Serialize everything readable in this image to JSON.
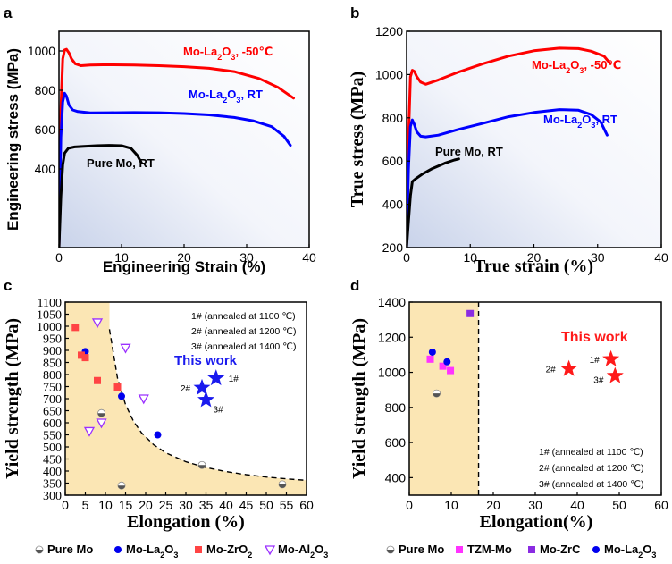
{
  "panels": [
    {
      "label": "a"
    },
    {
      "label": "b"
    },
    {
      "label": "c"
    },
    {
      "label": "d"
    }
  ],
  "chart_data": [
    {
      "id": "a",
      "type": "line",
      "xlabel": "Engineering Strain (%)",
      "ylabel": "Engineering stress (MPa)",
      "xlim": [
        0,
        40
      ],
      "ylim": [
        0,
        1100
      ],
      "xticks": [
        "0",
        "10",
        "20",
        "30",
        "40"
      ],
      "yticks": [
        "400",
        "600",
        "800",
        "1000"
      ],
      "series": [
        {
          "name": "Mo-La2O3, -50℃",
          "label_main": "Mo-La",
          "label_sub": "2",
          "label_tail": "O",
          "label_sub2": "3",
          "label_end": ", -50℃",
          "color": "#ff0000",
          "x": [
            0,
            0.3,
            0.6,
            0.9,
            1.2,
            1.6,
            2.0,
            2.6,
            3.5,
            5,
            8,
            12,
            16,
            20,
            24,
            28,
            32,
            35,
            37.5
          ],
          "y": [
            0,
            700,
            960,
            1005,
            1008,
            990,
            960,
            935,
            925,
            928,
            930,
            928,
            925,
            920,
            912,
            895,
            860,
            815,
            760
          ]
        },
        {
          "name": "Mo-La2O3, RT",
          "label_main": "Mo-La",
          "label_sub": "2",
          "label_tail": "O",
          "label_sub2": "3",
          "label_end": ", RT",
          "color": "#0000ff",
          "x": [
            0,
            0.3,
            0.6,
            0.9,
            1.2,
            1.6,
            2.2,
            3,
            5,
            8,
            12,
            16,
            20,
            24,
            28,
            31,
            34,
            36,
            37
          ],
          "y": [
            0,
            560,
            740,
            785,
            770,
            725,
            700,
            692,
            685,
            686,
            687,
            686,
            682,
            675,
            662,
            645,
            615,
            565,
            520
          ]
        },
        {
          "name": "Pure Mo, RT",
          "label_main": "Pure Mo, RT",
          "color": "#000000",
          "x": [
            0,
            0.3,
            0.6,
            0.9,
            1.5,
            2.5,
            4,
            6,
            8,
            10,
            11.5,
            12.5,
            13.2
          ],
          "y": [
            0,
            260,
            420,
            480,
            505,
            512,
            515,
            518,
            520,
            518,
            505,
            470,
            430
          ]
        }
      ]
    },
    {
      "id": "b",
      "type": "line",
      "xlabel": "True strain (%)",
      "ylabel": "True stress (MPa)",
      "xlim": [
        0,
        40
      ],
      "ylim": [
        200,
        1200
      ],
      "xticks": [
        "0",
        "10",
        "20",
        "30",
        "40"
      ],
      "yticks": [
        "200",
        "400",
        "600",
        "800",
        "1000",
        "1200"
      ],
      "series": [
        {
          "name": "Mo-La2O3, -50℃",
          "label_main": "Mo-La",
          "label_sub": "2",
          "label_tail": "O",
          "label_sub2": "3",
          "label_end": ", -50℃",
          "color": "#ff0000",
          "x": [
            0,
            0.3,
            0.6,
            0.9,
            1.2,
            1.6,
            2.2,
            3,
            5,
            8,
            12,
            16,
            20,
            24,
            27,
            29,
            31,
            32
          ],
          "y": [
            200,
            700,
            990,
            1020,
            1015,
            990,
            965,
            955,
            975,
            1010,
            1050,
            1085,
            1110,
            1122,
            1120,
            1108,
            1085,
            1050
          ]
        },
        {
          "name": "Mo-La2O3, RT",
          "label_main": "Mo-La",
          "label_sub": "2",
          "label_tail": "O",
          "label_sub2": "3",
          "label_end": ", RT",
          "color": "#0000ff",
          "x": [
            0,
            0.3,
            0.6,
            0.9,
            1.2,
            1.6,
            2.2,
            3,
            5,
            8,
            12,
            16,
            20,
            24,
            27,
            29,
            30.5,
            31.5
          ],
          "y": [
            200,
            560,
            760,
            790,
            770,
            735,
            715,
            712,
            720,
            745,
            775,
            805,
            825,
            838,
            835,
            815,
            780,
            720
          ]
        },
        {
          "name": "Pure Mo, RT",
          "label_main": "Pure Mo, RT",
          "color": "#000000",
          "x": [
            0,
            0.3,
            0.6,
            0.9,
            1.5,
            2.5,
            4,
            6,
            7.5,
            8.2
          ],
          "y": [
            200,
            320,
            440,
            505,
            520,
            540,
            565,
            590,
            605,
            610
          ]
        }
      ]
    },
    {
      "id": "c",
      "type": "scatter",
      "xlabel": "Elongation (%)",
      "ylabel": "Yield strength (MPa)",
      "xlim": [
        0,
        60
      ],
      "ylim": [
        300,
        1100
      ],
      "xticks": [
        "0",
        "5",
        "10",
        "15",
        "20",
        "25",
        "30",
        "35",
        "40",
        "45",
        "50",
        "55",
        "60"
      ],
      "yticks": [
        "300",
        "350",
        "400",
        "450",
        "500",
        "550",
        "600",
        "650",
        "700",
        "750",
        "800",
        "850",
        "900",
        "950",
        "1000",
        "1050",
        "1100"
      ],
      "boundary": {
        "type": "curve",
        "x": [
          11,
          13,
          15,
          17,
          19,
          22,
          25,
          30,
          35,
          40,
          45,
          50,
          55,
          60
        ]
      },
      "notes": [
        "1#  (annealed at 1100 ℃)",
        "2#  (annealed at 1200 ℃)",
        "3#  (annealed at 1400 ℃)"
      ],
      "this_work_label": "This work",
      "series": [
        {
          "name": "Pure Mo",
          "marker": "halfcircle",
          "color": "#777777",
          "points": [
            [
              9,
              640
            ],
            [
              14,
              340
            ],
            [
              34,
              425
            ],
            [
              54,
              345
            ]
          ]
        },
        {
          "name": "Mo-La2O3",
          "marker": "circle",
          "color": "#0000ee",
          "points": [
            [
              5,
              895
            ],
            [
              14,
              710
            ],
            [
              23,
              550
            ]
          ]
        },
        {
          "name": "Mo-ZrO2",
          "marker": "square",
          "color": "#ff4444",
          "points": [
            [
              2.5,
              995
            ],
            [
              4,
              880
            ],
            [
              5,
              870
            ],
            [
              8,
              775
            ],
            [
              13,
              748
            ]
          ]
        },
        {
          "name": "Mo-Al2O3",
          "marker": "triangle-down",
          "color": "#9b30ff",
          "points": [
            [
              6,
              565
            ],
            [
              8,
              1015
            ],
            [
              9,
              600
            ],
            [
              15,
              910
            ],
            [
              19.5,
              700
            ]
          ]
        },
        {
          "name": "This work",
          "marker": "star",
          "color": "#1a1aee",
          "points": [
            [
              37.5,
              785,
              "1#"
            ],
            [
              34,
              745,
              "2#"
            ],
            [
              35,
              695,
              "3#"
            ]
          ]
        }
      ]
    },
    {
      "id": "d",
      "type": "scatter",
      "xlabel": "Elongation(%)",
      "ylabel": "Yield strength (MPa)",
      "xlim": [
        0,
        60
      ],
      "ylim": [
        300,
        1400
      ],
      "xticks": [
        "0",
        "10",
        "20",
        "30",
        "40",
        "50",
        "60"
      ],
      "yticks": [
        "400",
        "600",
        "800",
        "1000",
        "1200",
        "1400"
      ],
      "boundary": {
        "type": "vertical",
        "x": 16.5
      },
      "notes": [
        "1#  (annealed at 1100 ℃)",
        "2#  (annealed at 1200 ℃)",
        "3#  (annealed at 1400 ℃)"
      ],
      "this_work_label": "This work",
      "series": [
        {
          "name": "Pure Mo",
          "marker": "halfcircle",
          "color": "#777777",
          "points": [
            [
              6.5,
              880
            ]
          ]
        },
        {
          "name": "TZM-Mo",
          "marker": "square",
          "color": "#ff33ff",
          "points": [
            [
              5,
              1075
            ],
            [
              8,
              1035
            ],
            [
              9.8,
              1010
            ]
          ]
        },
        {
          "name": "Mo-ZrC",
          "marker": "square",
          "color": "#8a2be2",
          "points": [
            [
              14.5,
              1335
            ]
          ]
        },
        {
          "name": "Mo-La2O3",
          "marker": "circle",
          "color": "#0000ee",
          "points": [
            [
              5.5,
              1115
            ],
            [
              9,
              1060
            ]
          ]
        },
        {
          "name": "This work",
          "marker": "star",
          "color": "#ff1a1a",
          "points": [
            [
              48,
              1075,
              "1#"
            ],
            [
              38,
              1020,
              "2#"
            ],
            [
              49,
              980,
              "3#"
            ]
          ]
        }
      ]
    }
  ],
  "legend_c": [
    {
      "label": "Pure Mo",
      "marker": "halfcircle",
      "main": "Pure Mo",
      "sub": "",
      "tail": ""
    },
    {
      "label": "Mo-La2O3",
      "marker": "circle",
      "main": "Mo-La",
      "sub": "2",
      "tail": "O",
      "sub2": "3"
    },
    {
      "label": "Mo-ZrO2",
      "marker": "square-red",
      "main": "Mo-ZrO",
      "sub": "2",
      "tail": ""
    },
    {
      "label": "Mo-Al2O3",
      "marker": "triangle-down",
      "main": "Mo-Al",
      "sub": "2",
      "tail": "O",
      "sub2": "3"
    }
  ],
  "legend_d": [
    {
      "label": "Pure Mo",
      "marker": "halfcircle",
      "main": "Pure Mo"
    },
    {
      "label": "TZM-Mo",
      "marker": "square-pink",
      "main": "TZM-Mo"
    },
    {
      "label": "Mo-ZrC",
      "marker": "square-purple",
      "main": "Mo-ZrC"
    },
    {
      "label": "Mo-La2O3",
      "marker": "circle",
      "main": "Mo-La",
      "sub": "2",
      "tail": "O",
      "sub2": "3"
    }
  ]
}
